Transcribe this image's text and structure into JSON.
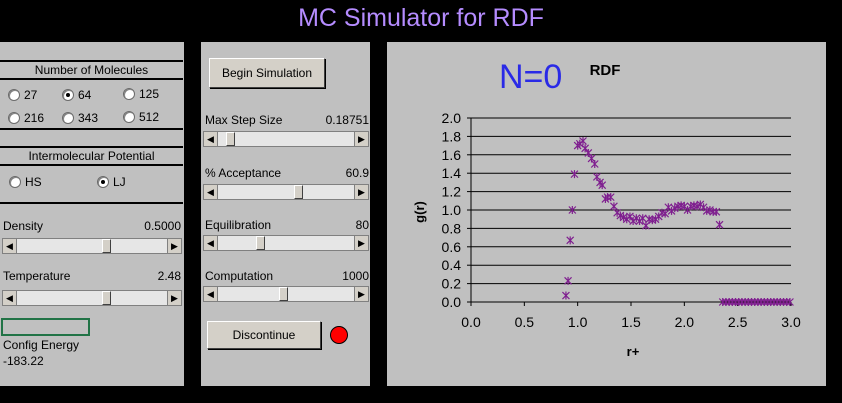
{
  "app_title": "MC Simulator for RDF",
  "left": {
    "molecules_header": "Number of Molecules",
    "molecule_options": [
      {
        "label": "27",
        "selected": false
      },
      {
        "label": "64",
        "selected": true
      },
      {
        "label": "125",
        "selected": false
      },
      {
        "label": "216",
        "selected": false
      },
      {
        "label": "343",
        "selected": false
      },
      {
        "label": "512",
        "selected": false
      }
    ],
    "potential_header": "Intermolecular Potential",
    "potential_options": [
      {
        "label": "HS",
        "selected": false
      },
      {
        "label": "LJ",
        "selected": true
      }
    ],
    "density_label": "Density",
    "density_value": "0.5000",
    "density_level": 0.6,
    "temperature_label": "Temperature",
    "temperature_value": "2.48",
    "temperature_level": 0.6,
    "config_energy_label": "Config Energy",
    "config_energy_value": "-183.22"
  },
  "middle": {
    "begin_button": "Begin Simulation",
    "max_step_label": "Max Step Size",
    "max_step_value": "0.18751",
    "max_step_level": 0.06,
    "acceptance_label": "% Acceptance",
    "acceptance_value": "60.9",
    "acceptance_level": 0.6,
    "equilibration_label": "Equilibration",
    "equilibration_value": "80",
    "equilibration_level": 0.3,
    "computation_label": "Computation",
    "computation_value": "1000",
    "computation_level": 0.48,
    "discontinue_button": "Discontinue",
    "status_color": "#ff0000"
  },
  "right": {
    "handwritten_note": "N=0",
    "note_color": "#2a2ae6"
  },
  "chart_data": {
    "type": "scatter",
    "title": "RDF",
    "xlabel": "r+",
    "ylabel": "g(r)",
    "xlim": [
      0,
      3
    ],
    "ylim": [
      0,
      2
    ],
    "x_ticks": [
      "0.0",
      "0.5",
      "1.0",
      "1.5",
      "2.0",
      "2.5",
      "3.0"
    ],
    "y_ticks": [
      "0.0",
      "0.2",
      "0.4",
      "0.6",
      "0.8",
      "1.0",
      "1.2",
      "1.4",
      "1.6",
      "1.8",
      "2.0"
    ],
    "grid": "horizontal",
    "marker_color": "#7f1f8f",
    "x": [
      0.89,
      0.91,
      0.93,
      0.95,
      0.97,
      1.0,
      1.02,
      1.05,
      1.07,
      1.1,
      1.13,
      1.16,
      1.18,
      1.21,
      1.23,
      1.26,
      1.28,
      1.31,
      1.34,
      1.37,
      1.4,
      1.43,
      1.46,
      1.49,
      1.52,
      1.55,
      1.58,
      1.61,
      1.64,
      1.67,
      1.7,
      1.73,
      1.76,
      1.79,
      1.82,
      1.85,
      1.88,
      1.91,
      1.94,
      1.97,
      2.0,
      2.03,
      2.06,
      2.09,
      2.12,
      2.15,
      2.18,
      2.21,
      2.24,
      2.27,
      2.3,
      2.33,
      2.36,
      2.39,
      2.42,
      2.45,
      2.48,
      2.51,
      2.54,
      2.57,
      2.6,
      2.63,
      2.66,
      2.69,
      2.72,
      2.75,
      2.78,
      2.81,
      2.84,
      2.87,
      2.9,
      2.93,
      2.96,
      2.99
    ],
    "values": [
      0.07,
      0.23,
      0.67,
      1.0,
      1.39,
      1.7,
      1.72,
      1.75,
      1.67,
      1.62,
      1.56,
      1.5,
      1.36,
      1.3,
      1.27,
      1.12,
      1.14,
      1.14,
      1.04,
      0.97,
      0.94,
      0.92,
      0.9,
      0.93,
      0.88,
      0.91,
      0.88,
      0.91,
      0.83,
      0.9,
      0.89,
      0.9,
      0.93,
      0.97,
      0.96,
      1.03,
      0.99,
      1.02,
      1.04,
      1.05,
      1.04,
      1.0,
      1.04,
      1.05,
      1.04,
      1.06,
      1.03,
      0.99,
      1.0,
      0.98,
      0.98,
      0.84,
      0.0,
      0.0,
      0.0,
      0.0,
      0.0,
      0.0,
      0.0,
      0.0,
      0.0,
      0.0,
      0.0,
      0.0,
      0.0,
      0.0,
      0.0,
      0.0,
      0.0,
      0.0,
      0.0,
      0.0,
      0.0,
      0.0
    ]
  }
}
